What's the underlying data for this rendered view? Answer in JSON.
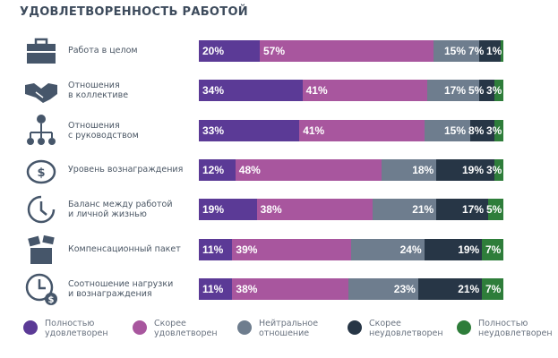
{
  "chart_data": {
    "type": "bar",
    "orientation": "horizontal",
    "stacked": true,
    "title": "УДОВЛЕТВОРЕННОСТЬ РАБОТОЙ",
    "categories": [
      {
        "label1": "Работа в целом",
        "label2": "",
        "icon": "briefcase-icon"
      },
      {
        "label1": "Отношения",
        "label2": "в коллективе",
        "icon": "handshake-icon"
      },
      {
        "label1": "Отношения",
        "label2": "с руководством",
        "icon": "org-chart-icon"
      },
      {
        "label1": "Уровень вознаграждения",
        "label2": "",
        "icon": "piggy-bank-icon"
      },
      {
        "label1": "Баланс между работой",
        "label2": "и личной жизнью",
        "icon": "clock-icon"
      },
      {
        "label1": "Компенсационный пакет",
        "label2": "",
        "icon": "package-icon"
      },
      {
        "label1": "Соотношение нагрузки",
        "label2": "и вознаграждения",
        "icon": "clock-money-icon"
      }
    ],
    "series": [
      {
        "name1": "Полностью",
        "name2": "удовлетворен",
        "color": "#5b3a96",
        "values": [
          20,
          34,
          33,
          12,
          19,
          11,
          11
        ]
      },
      {
        "name1": "Скорее",
        "name2": "удовлетворен",
        "color": "#a8569e",
        "values": [
          57,
          41,
          41,
          48,
          38,
          39,
          38
        ]
      },
      {
        "name1": "Нейтральное",
        "name2": "отношение",
        "color": "#6e7d8e",
        "values": [
          15,
          17,
          15,
          18,
          21,
          24,
          23
        ]
      },
      {
        "name1": "Скорее",
        "name2": "неудовлетворен",
        "color": "#273646",
        "values": [
          7,
          5,
          8,
          19,
          17,
          19,
          21
        ]
      },
      {
        "name1": "Полностью",
        "name2": "неудовлетворен",
        "color": "#2e7d3a",
        "values": [
          1,
          3,
          3,
          3,
          5,
          7,
          7
        ]
      }
    ],
    "unit": "%",
    "legend": "bottom"
  }
}
